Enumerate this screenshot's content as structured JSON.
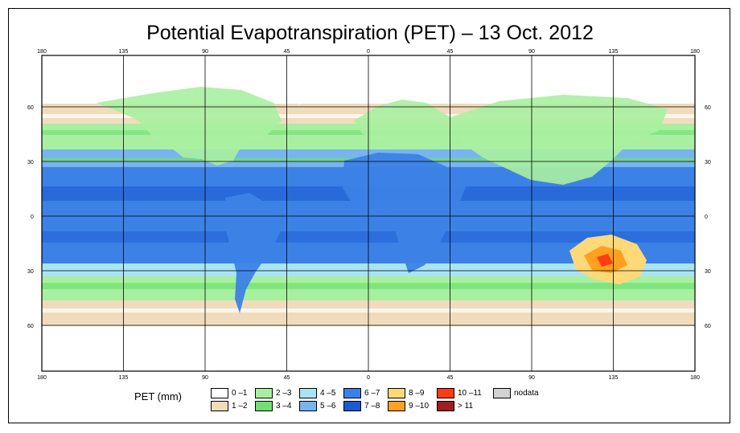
{
  "title": "Potential Evapotranspiration (PET) – 13 Oct. 2012",
  "legend_title": "PET (mm)",
  "lon_labels": [
    "180",
    "135",
    "90",
    "45",
    "0",
    "45",
    "90",
    "135",
    "180"
  ],
  "lat_labels": [
    "60",
    "30",
    "0",
    "30",
    "60"
  ],
  "legend": [
    {
      "label": "0 –1",
      "color": "#ffffff"
    },
    {
      "label": "1 –2",
      "color": "#f0dcbc"
    },
    {
      "label": "2 –3",
      "color": "#a8f0a0"
    },
    {
      "label": "3 –4",
      "color": "#70e070"
    },
    {
      "label": "4 –5",
      "color": "#a8e4f4"
    },
    {
      "label": "5 –6",
      "color": "#78b4f0"
    },
    {
      "label": "6 –7",
      "color": "#3c82e6"
    },
    {
      "label": "7 –8",
      "color": "#1a5ad2"
    },
    {
      "label": "8 –9",
      "color": "#ffd878"
    },
    {
      "label": "9 –10",
      "color": "#ffa020"
    },
    {
      "label": "10 –11",
      "color": "#ff3c14"
    },
    {
      "label": "> 11",
      "color": "#a01e1e"
    },
    {
      "label": "nodata",
      "color": "#d2d2d2"
    }
  ]
}
